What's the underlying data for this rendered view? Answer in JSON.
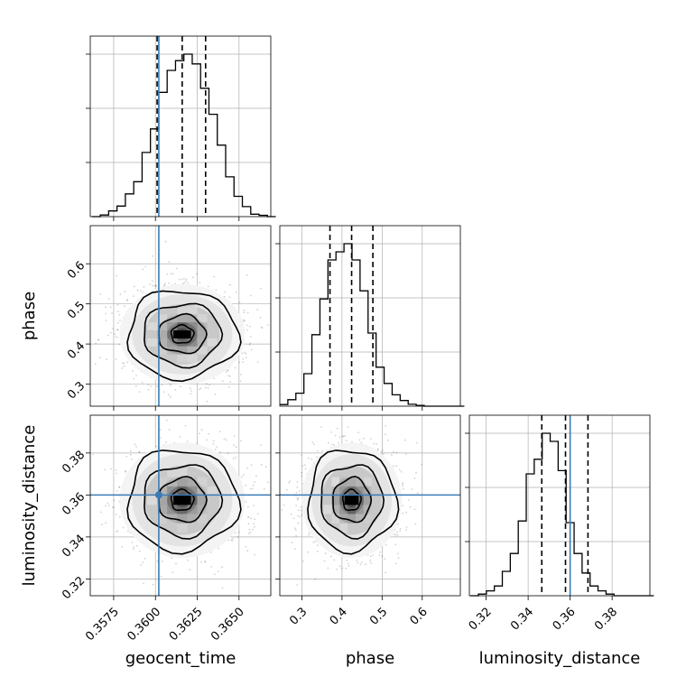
{
  "chart_data": {
    "type": "corner",
    "title": "",
    "grid": true,
    "colors": {
      "line": "#000000",
      "truth": "#3b7bb5",
      "grid": "#b0b0b0"
    },
    "parameters": [
      {
        "name": "geocent_time",
        "label": "geocent_time",
        "range": [
          0.3561,
          0.3669
        ],
        "ticks": [
          0.3575,
          0.36,
          0.3625,
          0.365
        ],
        "tick_labels": [
          "0.3575",
          "0.3600",
          "0.3625",
          "0.3650"
        ],
        "truth": 0.3602,
        "quantiles": [
          0.3601,
          0.3616,
          0.363
        ],
        "histogram": {
          "bin_start": 0.3562,
          "bin_width": 0.0005,
          "counts": [
            0,
            0.01,
            0.035,
            0.065,
            0.14,
            0.215,
            0.395,
            0.54,
            0.765,
            0.9,
            0.96,
            1.0,
            0.94,
            0.79,
            0.63,
            0.44,
            0.245,
            0.125,
            0.062,
            0.015,
            0.008,
            0
          ]
        }
      },
      {
        "name": "phase",
        "label": "phase",
        "range": [
          0.245,
          0.695
        ],
        "ticks": [
          0.3,
          0.4,
          0.5,
          0.6
        ],
        "tick_labels": [
          "0.3",
          "0.4",
          "0.5",
          "0.6"
        ],
        "quantiles": [
          0.37,
          0.424,
          0.477
        ],
        "histogram": {
          "bin_start": 0.245,
          "bin_width": 0.02,
          "counts": [
            0.01,
            0.04,
            0.08,
            0.2,
            0.44,
            0.66,
            0.9,
            0.95,
            1.0,
            0.9,
            0.71,
            0.45,
            0.24,
            0.14,
            0.07,
            0.035,
            0.012,
            0.005,
            0,
            0,
            0,
            0,
            0
          ]
        }
      },
      {
        "name": "luminosity_distance",
        "label": "luminosity_distance",
        "range": [
          0.312,
          0.398
        ],
        "ticks": [
          0.32,
          0.34,
          0.36,
          0.38
        ],
        "tick_labels": [
          "0.32",
          "0.34",
          "0.36",
          "0.38"
        ],
        "truth": 0.36,
        "quantiles": [
          0.3465,
          0.3578,
          0.3685
        ],
        "histogram": {
          "bin_start": 0.3125,
          "bin_width": 0.0038,
          "counts": [
            0,
            0.01,
            0.03,
            0.06,
            0.15,
            0.26,
            0.46,
            0.75,
            0.84,
            1.0,
            0.95,
            0.77,
            0.45,
            0.26,
            0.14,
            0.06,
            0.03,
            0.01,
            0,
            0,
            0,
            0,
            0
          ]
        }
      }
    ],
    "panels_2d": [
      {
        "x": "geocent_time",
        "y": "phase",
        "center": [
          0.3616,
          0.424
        ],
        "sigma": [
          0.0015,
          0.05
        ],
        "truth_x": 0.3602
      },
      {
        "x": "geocent_time",
        "y": "luminosity_distance",
        "center": [
          0.3616,
          0.3575
        ],
        "sigma": [
          0.0015,
          0.011
        ],
        "truth_x": 0.3602,
        "truth_y": 0.36
      },
      {
        "x": "phase",
        "y": "luminosity_distance",
        "center": [
          0.424,
          0.3575
        ],
        "sigma": [
          0.05,
          0.011
        ],
        "truth_y": 0.36
      }
    ]
  }
}
